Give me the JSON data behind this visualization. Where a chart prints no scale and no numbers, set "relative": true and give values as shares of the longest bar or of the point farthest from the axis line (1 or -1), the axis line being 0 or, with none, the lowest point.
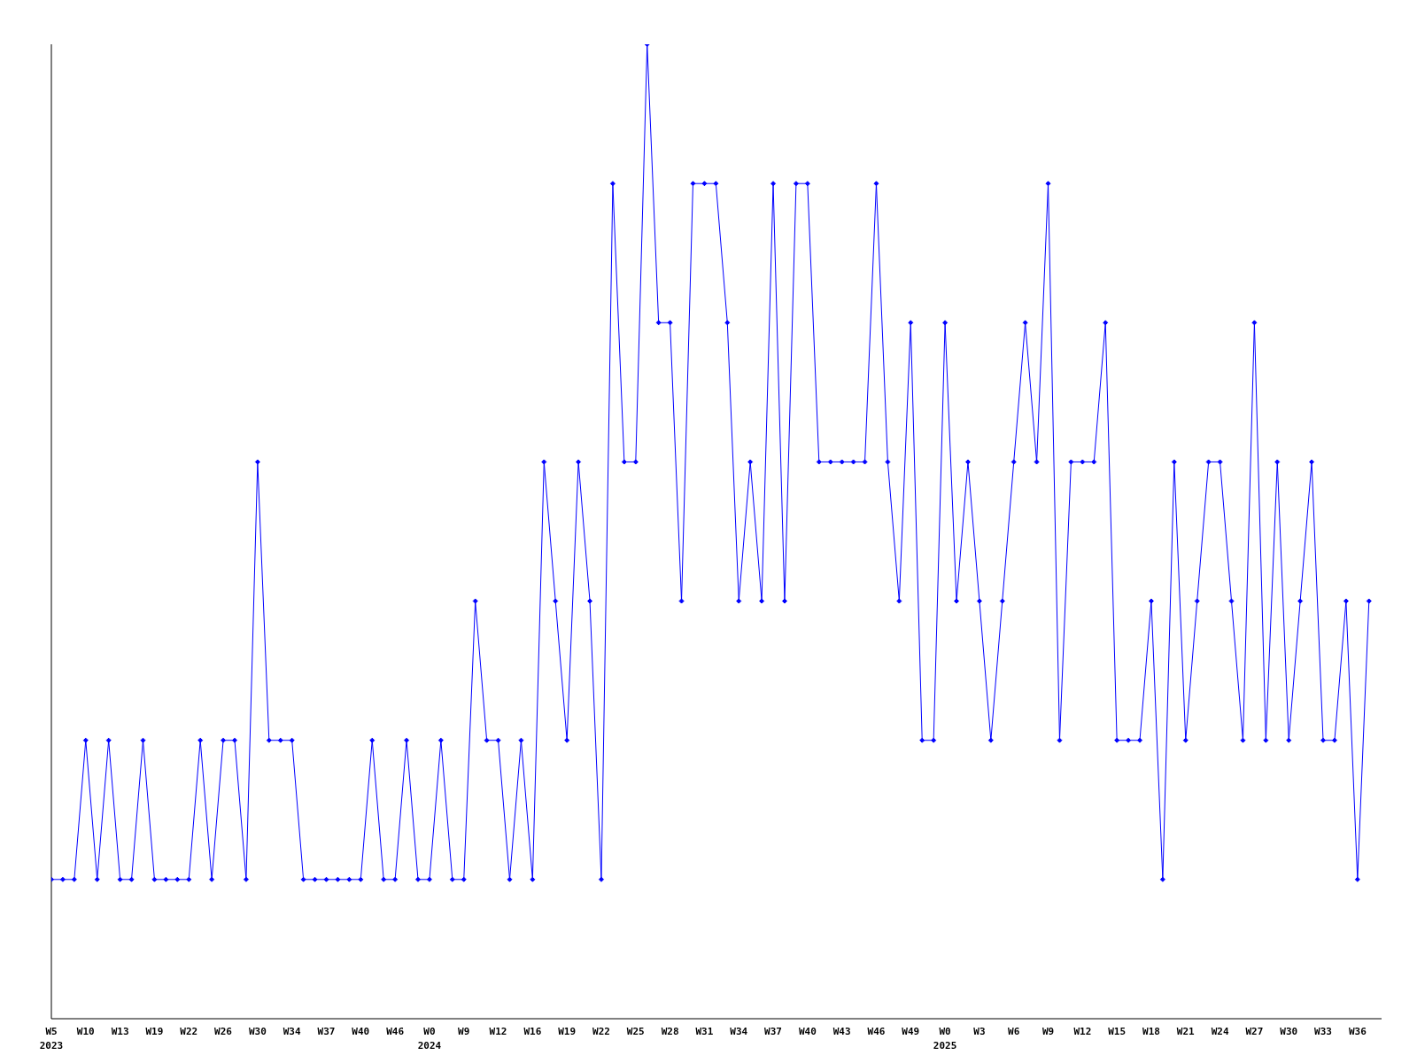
{
  "chart_data": {
    "type": "line",
    "relative": true,
    "marker": "diamond",
    "line_style": "solid",
    "grid": false,
    "legend": false,
    "categories": [
      "W5\n2023",
      null,
      null,
      "W10",
      null,
      null,
      "W13",
      null,
      null,
      "W19",
      null,
      null,
      "W22",
      null,
      null,
      "W26",
      null,
      null,
      "W30",
      null,
      null,
      "W34",
      null,
      null,
      "W37",
      null,
      null,
      "W40",
      null,
      null,
      "W46",
      null,
      null,
      "W0\n2024",
      null,
      null,
      "W9",
      null,
      null,
      "W12",
      null,
      null,
      "W16",
      null,
      null,
      "W19",
      null,
      null,
      "W22",
      null,
      null,
      "W25",
      null,
      null,
      "W28",
      null,
      null,
      "W31",
      null,
      null,
      "W34",
      null,
      null,
      "W37",
      null,
      null,
      "W40",
      null,
      null,
      "W43",
      null,
      null,
      "W46",
      null,
      null,
      "W49",
      null,
      null,
      "W0\n2025",
      null,
      null,
      "W3",
      null,
      null,
      "W6",
      null,
      null,
      "W9",
      null,
      null,
      "W12",
      null,
      null,
      "W15",
      null,
      null,
      "W18",
      null,
      null,
      "W21",
      null,
      null,
      "W24",
      null,
      null,
      "W27",
      null,
      null,
      "W30",
      null,
      null,
      "W33",
      null,
      null,
      "W36",
      null
    ],
    "series": [
      {
        "color": "#0000ff",
        "values": [
          0.1429,
          0.1429,
          0.1429,
          0.2857,
          0.1429,
          0.2857,
          0.1429,
          0.1429,
          0.2857,
          0.1429,
          0.1429,
          0.1429,
          0.1429,
          0.2857,
          0.1429,
          0.2857,
          0.2857,
          0.1429,
          0.5714,
          0.2857,
          0.2857,
          0.2857,
          0.1429,
          0.1429,
          0.1429,
          0.1429,
          0.1429,
          0.1429,
          0.2857,
          0.1429,
          0.1429,
          0.2857,
          0.1429,
          0.1429,
          0.2857,
          0.1429,
          0.1429,
          0.4286,
          0.2857,
          0.2857,
          0.1429,
          0.2857,
          0.1429,
          0.5714,
          0.4286,
          0.2857,
          0.5714,
          0.4286,
          0.1429,
          0.8571,
          0.5714,
          0.5714,
          1,
          0.7143,
          0.7143,
          0.4286,
          0.8571,
          0.8571,
          0.8571,
          0.7143,
          0.4286,
          0.5714,
          0.4286,
          0.8571,
          0.4286,
          0.8571,
          0.8571,
          0.5714,
          0.5714,
          0.5714,
          0.5714,
          0.5714,
          0.8571,
          0.5714,
          0.4286,
          0.7143,
          0.2857,
          0.2857,
          0.7143,
          0.4286,
          0.5714,
          0.4286,
          0.2857,
          0.4286,
          0.5714,
          0.7143,
          0.5714,
          0.8571,
          0.2857,
          0.5714,
          0.5714,
          0.5714,
          0.7143,
          0.2857,
          0.2857,
          0.2857,
          0.4286,
          0.1429,
          0.5714,
          0.2857,
          0.4286,
          0.5714,
          0.5714,
          0.4286,
          0.2857,
          0.7143,
          0.2857,
          0.5714,
          0.2857,
          0.4286,
          0.5714,
          0.2857,
          0.2857,
          0.4286,
          0.1429,
          0.4286
        ]
      }
    ]
  }
}
